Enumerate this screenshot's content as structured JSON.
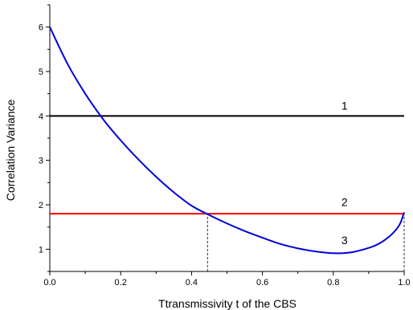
{
  "chart_data": {
    "type": "line",
    "xlabel": "Ttransmissivity t of the CBS",
    "ylabel": "Correlation Variance",
    "xlim": [
      0,
      1
    ],
    "ylim": [
      0.5,
      6.5
    ],
    "xticks": [
      {
        "value": 0,
        "label": "0.0"
      },
      {
        "value": 0.2,
        "label": "0.2"
      },
      {
        "value": 0.4,
        "label": "0.4"
      },
      {
        "value": 0.6,
        "label": "0.6"
      },
      {
        "value": 0.8,
        "label": "0.8"
      },
      {
        "value": 1.0,
        "label": "1.0"
      }
    ],
    "yticks": [
      {
        "value": 1,
        "label": "1"
      },
      {
        "value": 2,
        "label": "2"
      },
      {
        "value": 3,
        "label": "3"
      },
      {
        "value": 4,
        "label": "4"
      },
      {
        "value": 5,
        "label": "5"
      },
      {
        "value": 6,
        "label": "6"
      }
    ],
    "grid": false,
    "series": [
      {
        "label": "1",
        "color": "#000000",
        "x": [
          0,
          1
        ],
        "y": [
          4,
          4
        ]
      },
      {
        "label": "2",
        "color": "#ff0000",
        "x": [
          0,
          1
        ],
        "y": [
          1.8,
          1.8
        ]
      },
      {
        "label": "3",
        "color": "#0000dd",
        "x": [
          0,
          0.05,
          0.1,
          0.15,
          0.2,
          0.25,
          0.3,
          0.35,
          0.4,
          0.45,
          0.5,
          0.55,
          0.6,
          0.65,
          0.7,
          0.75,
          0.8,
          0.85,
          0.9,
          0.93,
          0.96,
          0.98,
          0.99,
          1.0
        ],
        "y": [
          6.0,
          5.17,
          4.5,
          3.93,
          3.45,
          3.02,
          2.63,
          2.28,
          1.98,
          1.77,
          1.58,
          1.41,
          1.26,
          1.12,
          1.02,
          0.95,
          0.91,
          0.93,
          1.03,
          1.13,
          1.3,
          1.47,
          1.6,
          1.83
        ]
      }
    ],
    "annotations": [
      {
        "text": "1",
        "x": 0.8,
        "y": 4.2
      },
      {
        "text": "2",
        "x": 0.8,
        "y": 2.03
      },
      {
        "text": "3",
        "x": 0.8,
        "y": 1.17
      }
    ],
    "reference_lines": [
      {
        "x": 0.445,
        "y_from": 0.5,
        "y_to": 1.8
      },
      {
        "x": 1.0,
        "y_from": 0.5,
        "y_to": 1.83
      }
    ]
  }
}
